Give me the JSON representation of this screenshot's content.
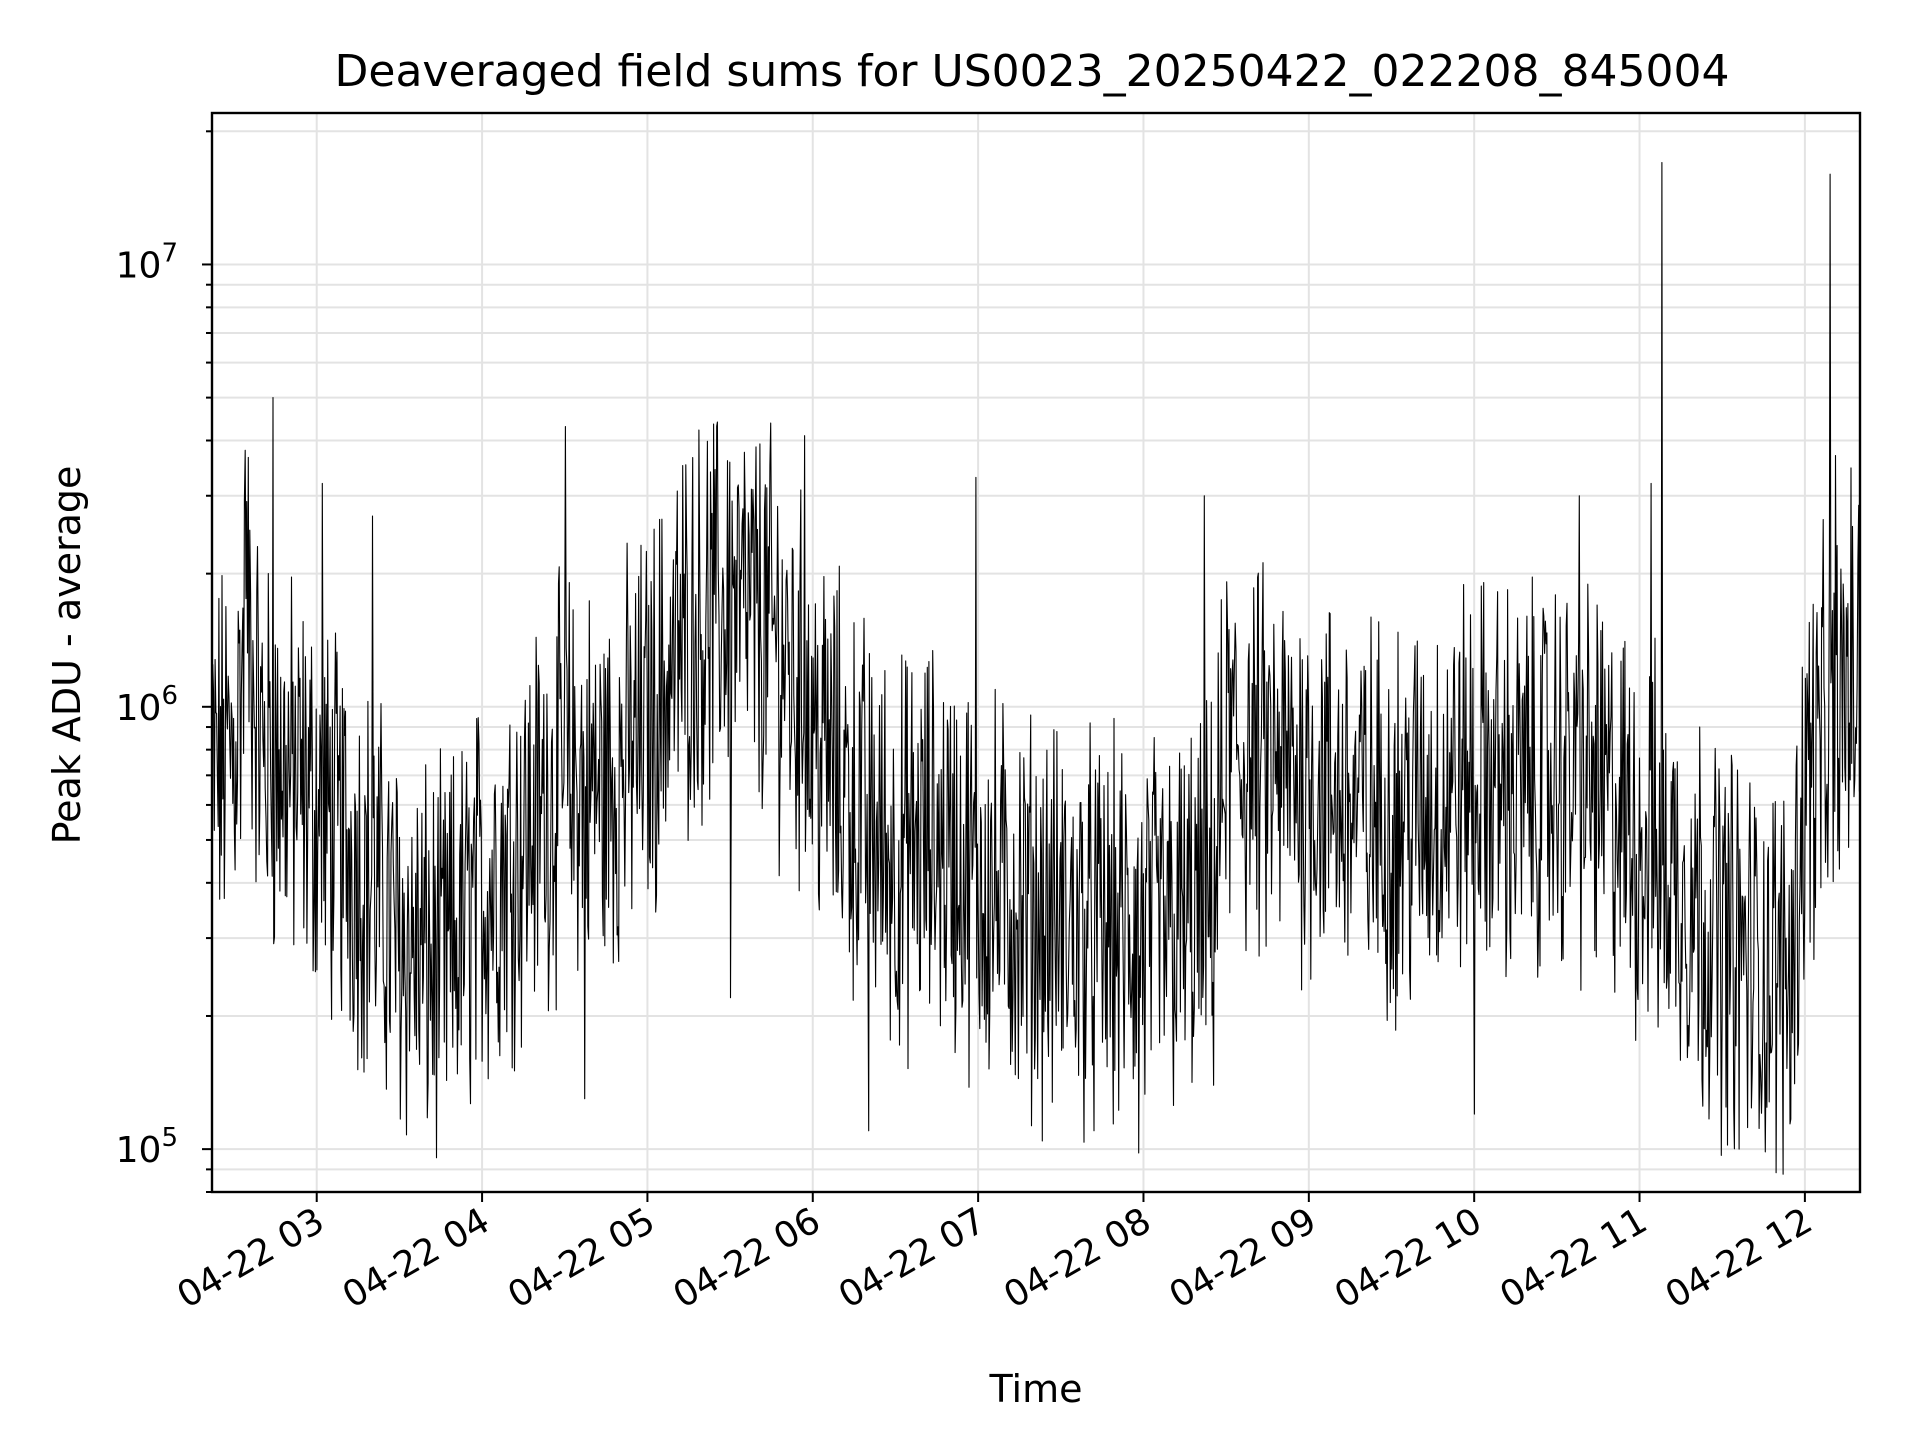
{
  "chart_data": {
    "type": "line",
    "title": "Deaveraged field sums for US0023_20250422_022208_845004",
    "xlabel": "Time",
    "ylabel": "Peak ADU - average",
    "yscale": "log",
    "ylim": [
      80000,
      22000000
    ],
    "xlim": [
      "2025-04-22 02:22",
      "2025-04-22 12:20"
    ],
    "grid": true,
    "line_color": "#000000",
    "x_tick_labels": [
      "04-22 03",
      "04-22 04",
      "04-22 05",
      "04-22 06",
      "04-22 07",
      "04-22 08",
      "04-22 09",
      "04-22 10",
      "04-22 11",
      "04-22 12"
    ],
    "x_ticks": [
      "2025-04-22 03:00",
      "2025-04-22 04:00",
      "2025-04-22 05:00",
      "2025-04-22 06:00",
      "2025-04-22 07:00",
      "2025-04-22 08:00",
      "2025-04-22 09:00",
      "2025-04-22 10:00",
      "2025-04-22 11:00",
      "2025-04-22 12:00"
    ],
    "y_ticks": [
      100000,
      1000000,
      10000000
    ],
    "y_tick_labels": [
      {
        "base": "10",
        "exp": "5"
      },
      {
        "base": "10",
        "exp": "6"
      },
      {
        "base": "10",
        "exp": "7"
      }
    ],
    "series": [
      {
        "x": [
          "2025-04-22 02:22",
          "2025-04-22 02:30",
          "2025-04-22 02:35",
          "2025-04-22 02:40",
          "2025-04-22 02:50",
          "2025-04-22 03:00",
          "2025-04-22 03:15",
          "2025-04-22 03:30",
          "2025-04-22 03:45",
          "2025-04-22 04:00",
          "2025-04-22 04:15",
          "2025-04-22 04:30",
          "2025-04-22 04:45",
          "2025-04-22 05:00",
          "2025-04-22 05:15",
          "2025-04-22 05:30",
          "2025-04-22 05:45",
          "2025-04-22 06:00",
          "2025-04-22 06:15",
          "2025-04-22 06:30",
          "2025-04-22 06:45",
          "2025-04-22 07:00",
          "2025-04-22 07:15",
          "2025-04-22 07:30",
          "2025-04-22 07:45",
          "2025-04-22 08:00",
          "2025-04-22 08:15",
          "2025-04-22 08:25",
          "2025-04-22 08:30",
          "2025-04-22 08:45",
          "2025-04-22 09:00",
          "2025-04-22 09:15",
          "2025-04-22 09:30",
          "2025-04-22 09:45",
          "2025-04-22 10:00",
          "2025-04-22 10:15",
          "2025-04-22 10:30",
          "2025-04-22 10:45",
          "2025-04-22 11:00",
          "2025-04-22 11:08",
          "2025-04-22 11:15",
          "2025-04-22 11:30",
          "2025-04-22 11:45",
          "2025-04-22 11:55",
          "2025-04-22 12:00",
          "2025-04-22 12:10",
          "2025-04-22 12:15",
          "2025-04-22 12:20"
        ],
        "y": [
          700000,
          800000,
          1600000,
          800000,
          700000,
          600000,
          450000,
          300000,
          250000,
          380000,
          500000,
          700000,
          650000,
          900000,
          1500000,
          1700000,
          1500000,
          900000,
          600000,
          450000,
          500000,
          400000,
          350000,
          320000,
          300000,
          300000,
          320000,
          350000,
          800000,
          700000,
          700000,
          600000,
          550000,
          600000,
          700000,
          650000,
          700000,
          650000,
          500000,
          450000,
          400000,
          300000,
          250000,
          250000,
          700000,
          900000,
          1100000,
          1200000
        ],
        "spikes": [
          {
            "x": "2025-04-22 02:44",
            "y": 5000000
          },
          {
            "x": "2025-04-22 02:34",
            "y": 3800000
          },
          {
            "x": "2025-04-22 03:02",
            "y": 3200000
          },
          {
            "x": "2025-04-22 03:20",
            "y": 2700000
          },
          {
            "x": "2025-04-22 04:30",
            "y": 4300000
          },
          {
            "x": "2025-04-22 04:37",
            "y": 130000
          },
          {
            "x": "2025-04-22 05:29",
            "y": 3600000
          },
          {
            "x": "2025-04-22 05:30",
            "y": 220000
          },
          {
            "x": "2025-04-22 05:57",
            "y": 4100000
          },
          {
            "x": "2025-04-22 06:20",
            "y": 110000
          },
          {
            "x": "2025-04-22 06:59",
            "y": 3300000
          },
          {
            "x": "2025-04-22 07:58",
            "y": 98000
          },
          {
            "x": "2025-04-22 08:22",
            "y": 3000000
          },
          {
            "x": "2025-04-22 10:00",
            "y": 120000
          },
          {
            "x": "2025-04-22 10:38",
            "y": 3000000
          },
          {
            "x": "2025-04-22 11:04",
            "y": 3200000
          },
          {
            "x": "2025-04-22 11:08",
            "y": 17000000
          },
          {
            "x": "2025-04-22 11:36",
            "y": 100000
          },
          {
            "x": "2025-04-22 12:09",
            "y": 16000000
          },
          {
            "x": "2025-04-22 12:11",
            "y": 3700000
          }
        ]
      }
    ]
  }
}
